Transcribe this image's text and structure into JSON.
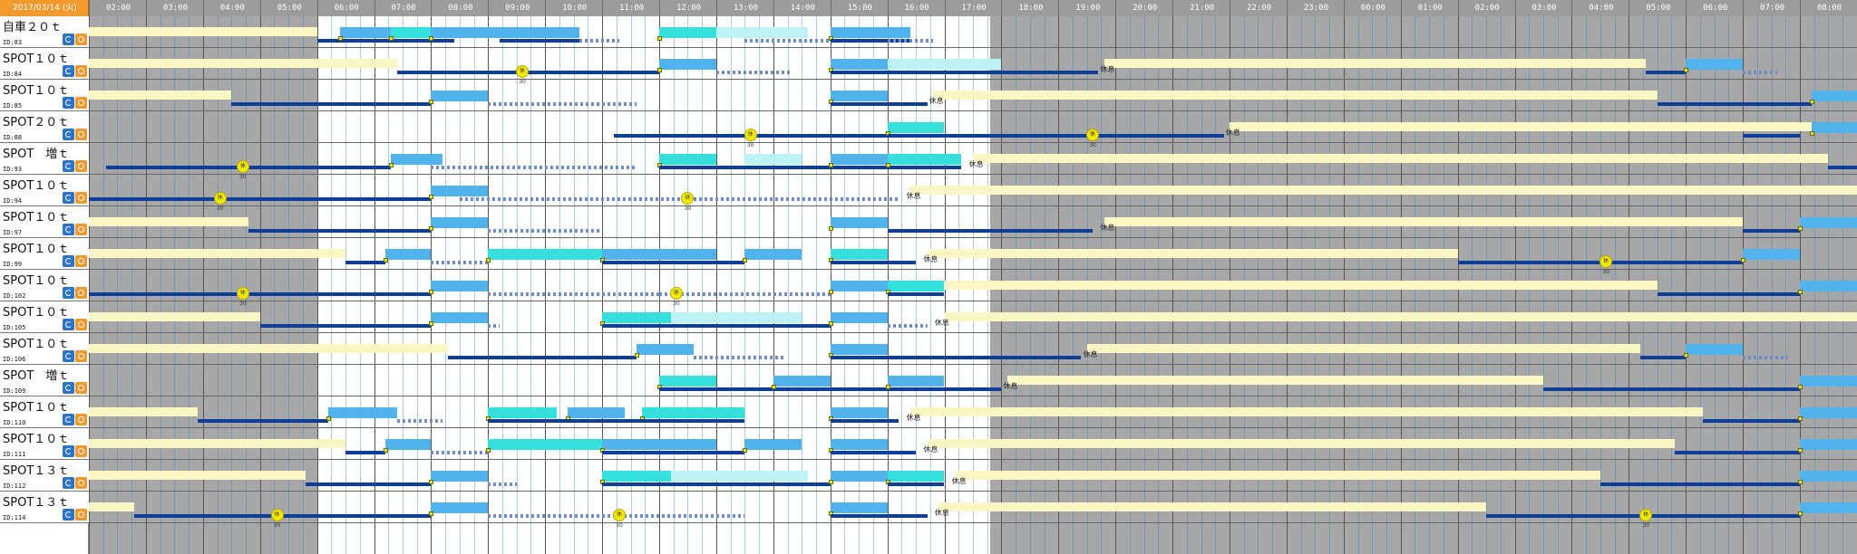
{
  "header": {
    "date": "2017/03/14 (火)",
    "hours": [
      "02:00",
      "03:00",
      "04:00",
      "05:00",
      "06:00",
      "07:00",
      "08:00",
      "09:00",
      "10:00",
      "11:00",
      "12:00",
      "13:00",
      "14:00",
      "15:00",
      "16:00",
      "17:00",
      "18:00",
      "19:00",
      "20:00",
      "21:00",
      "22:00",
      "23:00",
      "00:00",
      "01:00",
      "02:00",
      "03:00",
      "04:00",
      "05:00",
      "06:00",
      "07:00",
      "08:00"
    ]
  },
  "rest_label": "休息",
  "rest_badge": "休30",
  "rows": [
    {
      "title": "自車２０ｔ",
      "id": "ID:83",
      "tasks": [
        {
          "kind": "idle",
          "s": 0,
          "e": 4
        },
        {
          "kind": "dark",
          "s": 4,
          "e": 6.4
        },
        {
          "kind": "light",
          "s": 4.4,
          "e": 5.3,
          "label": "..."
        },
        {
          "kind": "cyan",
          "s": 5.3,
          "e": 6,
          "label": "..."
        },
        {
          "kind": "light",
          "s": 6,
          "e": 8.6,
          "label": "..."
        },
        {
          "kind": "dark",
          "s": 7.2,
          "e": 8.6
        },
        {
          "kind": "dots",
          "s": 8.6,
          "e": 9.3
        },
        {
          "kind": "cyan",
          "s": 10,
          "e": 12,
          "label": "..."
        },
        {
          "kind": "pale",
          "s": 11,
          "e": 12.6,
          "label": ""
        },
        {
          "kind": "dots",
          "s": 11.5,
          "e": 13
        },
        {
          "kind": "light",
          "s": 13,
          "e": 14.4,
          "label": "..."
        },
        {
          "kind": "dark",
          "s": 13,
          "e": 14.4
        },
        {
          "kind": "dots",
          "s": 14,
          "e": 14.8
        }
      ]
    },
    {
      "title": "SPOT１０ｔ",
      "id": "ID:84",
      "rest_at": 17.7,
      "badge_at": 7.6,
      "tasks": [
        {
          "kind": "idle",
          "s": 0,
          "e": 5.4
        },
        {
          "kind": "dark",
          "s": 5.4,
          "e": 10
        },
        {
          "kind": "light",
          "s": 10,
          "e": 11,
          "label": "..."
        },
        {
          "kind": "dots",
          "s": 11,
          "e": 12.3
        },
        {
          "kind": "light",
          "s": 13,
          "e": 14,
          "label": "..."
        },
        {
          "kind": "pale",
          "s": 14,
          "e": 16,
          "label": ""
        },
        {
          "kind": "dark",
          "s": 13,
          "e": 17.7
        },
        {
          "kind": "idle",
          "s": 17.8,
          "e": 27.3
        },
        {
          "kind": "dark",
          "s": 27.3,
          "e": 28
        },
        {
          "kind": "light",
          "s": 28,
          "e": 29,
          "label": "..."
        },
        {
          "kind": "dots",
          "s": 29,
          "e": 29.6
        }
      ]
    },
    {
      "title": "SPOT１０ｔ",
      "id": "ID:85",
      "rest_at": 14.7,
      "tasks": [
        {
          "kind": "idle",
          "s": 0,
          "e": 2.5
        },
        {
          "kind": "dark",
          "s": 2.5,
          "e": 6
        },
        {
          "kind": "light",
          "s": 6,
          "e": 7,
          "label": "..."
        },
        {
          "kind": "dots",
          "s": 7,
          "e": 9.6
        },
        {
          "kind": "light",
          "s": 13,
          "e": 14,
          "label": "..."
        },
        {
          "kind": "dark",
          "s": 13,
          "e": 14.7
        },
        {
          "kind": "idle",
          "s": 14.8,
          "e": 27.5
        },
        {
          "kind": "dark",
          "s": 27.5,
          "e": 30.2
        },
        {
          "kind": "light",
          "s": 30.2,
          "e": 31,
          "label": ""
        }
      ]
    },
    {
      "title": "SPOT２０ｔ",
      "id": "ID:88",
      "rest_at": 19.9,
      "badge_at": 11.6,
      "badge2_at": 17.6,
      "tasks": [
        {
          "kind": "dark",
          "s": 9.2,
          "e": 14
        },
        {
          "kind": "cyan",
          "s": 14,
          "e": 15,
          "label": "..."
        },
        {
          "kind": "dark",
          "s": 14,
          "e": 19.9
        },
        {
          "kind": "idle",
          "s": 20,
          "e": 30.2
        },
        {
          "kind": "dark",
          "s": 29,
          "e": 30
        },
        {
          "kind": "light",
          "s": 30.2,
          "e": 31,
          "label": ""
        }
      ]
    },
    {
      "title": "SPOT　増ｔ",
      "id": "ID:93",
      "rest_at": 15.4,
      "badge_at": 2.7,
      "tasks": [
        {
          "kind": "dark",
          "s": 0.3,
          "e": 5.3
        },
        {
          "kind": "light",
          "s": 5.3,
          "e": 6.2,
          "label": "..."
        },
        {
          "kind": "dots",
          "s": 6,
          "e": 9.6
        },
        {
          "kind": "cyan",
          "s": 10,
          "e": 11,
          "label": "..."
        },
        {
          "kind": "pale",
          "s": 11.5,
          "e": 12.5,
          "label": ""
        },
        {
          "kind": "dark",
          "s": 10,
          "e": 15.3
        },
        {
          "kind": "light",
          "s": 13,
          "e": 14,
          "label": "..."
        },
        {
          "kind": "cyan",
          "s": 14,
          "e": 15.3,
          "label": "..."
        },
        {
          "kind": "idle",
          "s": 15.5,
          "e": 30.5
        },
        {
          "kind": "dark",
          "s": 30.5,
          "e": 31
        }
      ]
    },
    {
      "title": "SPOT１０ｔ",
      "id": "ID:94",
      "rest_at": 14.3,
      "badge_at": 2.3,
      "badge2_at": 10.5,
      "tasks": [
        {
          "kind": "dark",
          "s": 0,
          "e": 6
        },
        {
          "kind": "light",
          "s": 6,
          "e": 7,
          "label": "..."
        },
        {
          "kind": "dots",
          "s": 6.5,
          "e": 14.2
        },
        {
          "kind": "idle",
          "s": 14.4,
          "e": 31
        }
      ]
    },
    {
      "title": "SPOT１０ｔ",
      "id": "ID:97",
      "rest_at": 17.7,
      "tasks": [
        {
          "kind": "idle",
          "s": 0,
          "e": 2.8
        },
        {
          "kind": "dark",
          "s": 2.8,
          "e": 6
        },
        {
          "kind": "light",
          "s": 6,
          "e": 7,
          "label": "..."
        },
        {
          "kind": "dots",
          "s": 7,
          "e": 9
        },
        {
          "kind": "light",
          "s": 13,
          "e": 14,
          "label": "..."
        },
        {
          "kind": "dark",
          "s": 14,
          "e": 17.6
        },
        {
          "kind": "idle",
          "s": 17.8,
          "e": 29
        },
        {
          "kind": "dark",
          "s": 29,
          "e": 30
        },
        {
          "kind": "light",
          "s": 30,
          "e": 31,
          "label": ""
        }
      ]
    },
    {
      "title": "SPOT１０ｔ",
      "id": "ID:99",
      "rest_at": 14.6,
      "badge_at": 26.6,
      "tasks": [
        {
          "kind": "idle",
          "s": 0,
          "e": 4.5
        },
        {
          "kind": "dark",
          "s": 4.5,
          "e": 5.2
        },
        {
          "kind": "light",
          "s": 5.2,
          "e": 6,
          "label": "..."
        },
        {
          "kind": "dots",
          "s": 6,
          "e": 7
        },
        {
          "kind": "cyan",
          "s": 7,
          "e": 9,
          "label": "..."
        },
        {
          "kind": "light",
          "s": 9,
          "e": 11,
          "label": "..."
        },
        {
          "kind": "dark",
          "s": 9,
          "e": 11.5
        },
        {
          "kind": "light",
          "s": 11.5,
          "e": 12.5,
          "label": "..."
        },
        {
          "kind": "cyan",
          "s": 13,
          "e": 14,
          "label": "..."
        },
        {
          "kind": "dark",
          "s": 13,
          "e": 14.5
        },
        {
          "kind": "idle",
          "s": 14.7,
          "e": 24
        },
        {
          "kind": "dark",
          "s": 24,
          "e": 29
        },
        {
          "kind": "light",
          "s": 29,
          "e": 30,
          "label": "..."
        }
      ]
    },
    {
      "title": "SPOT１０ｔ",
      "id": "ID:102",
      "badge_at": 2.7,
      "badge2_at": 10.3,
      "tasks": [
        {
          "kind": "dark",
          "s": 0,
          "e": 6
        },
        {
          "kind": "light",
          "s": 6,
          "e": 7,
          "label": "..."
        },
        {
          "kind": "dots",
          "s": 7,
          "e": 10
        },
        {
          "kind": "dots",
          "s": 10,
          "e": 13
        },
        {
          "kind": "light",
          "s": 13,
          "e": 14,
          "label": "..."
        },
        {
          "kind": "cyan",
          "s": 14,
          "e": 15,
          "label": "..."
        },
        {
          "kind": "dark",
          "s": 14,
          "e": 15
        },
        {
          "kind": "idle",
          "s": 15,
          "e": 27.5
        },
        {
          "kind": "dark",
          "s": 27.5,
          "e": 30
        },
        {
          "kind": "light",
          "s": 30,
          "e": 31,
          "label": ""
        }
      ]
    },
    {
      "title": "SPOT１０ｔ",
      "id": "ID:105",
      "rest_at": 14.8,
      "tasks": [
        {
          "kind": "idle",
          "s": 0,
          "e": 3
        },
        {
          "kind": "dark",
          "s": 3,
          "e": 6
        },
        {
          "kind": "light",
          "s": 6,
          "e": 7,
          "label": "..."
        },
        {
          "kind": "dots",
          "s": 7,
          "e": 7.2
        },
        {
          "kind": "cyan",
          "s": 9,
          "e": 10.2,
          "label": "..."
        },
        {
          "kind": "pale",
          "s": 10.2,
          "e": 12.5,
          "label": ""
        },
        {
          "kind": "dark",
          "s": 9,
          "e": 13
        },
        {
          "kind": "light",
          "s": 13,
          "e": 14,
          "label": "..."
        },
        {
          "kind": "dots",
          "s": 14,
          "e": 14.7
        },
        {
          "kind": "idle",
          "s": 15,
          "e": 31
        }
      ]
    },
    {
      "title": "SPOT１０ｔ",
      "id": "ID:106",
      "rest_at": 17.4,
      "tasks": [
        {
          "kind": "idle",
          "s": 0,
          "e": 6.3
        },
        {
          "kind": "dark",
          "s": 6.3,
          "e": 9.6
        },
        {
          "kind": "light",
          "s": 9.6,
          "e": 10.6,
          "label": "..."
        },
        {
          "kind": "dots",
          "s": 10.6,
          "e": 12.2
        },
        {
          "kind": "light",
          "s": 13,
          "e": 14,
          "label": "..."
        },
        {
          "kind": "dark",
          "s": 13,
          "e": 17.4
        },
        {
          "kind": "idle",
          "s": 17.5,
          "e": 27.2
        },
        {
          "kind": "dark",
          "s": 27.2,
          "e": 28
        },
        {
          "kind": "light",
          "s": 28,
          "e": 29,
          "label": "..."
        },
        {
          "kind": "dots",
          "s": 29,
          "e": 29.8
        }
      ]
    },
    {
      "title": "SPOT　増ｔ",
      "id": "ID:109",
      "rest_at": 16,
      "tasks": [
        {
          "kind": "cyan",
          "s": 10,
          "e": 11,
          "label": "..."
        },
        {
          "kind": "dark",
          "s": 10,
          "e": 16
        },
        {
          "kind": "light",
          "s": 12,
          "e": 13,
          "label": "..."
        },
        {
          "kind": "light",
          "s": 14,
          "e": 15,
          "label": "..."
        },
        {
          "kind": "idle",
          "s": 16.1,
          "e": 25.5
        },
        {
          "kind": "dark",
          "s": 25.5,
          "e": 30
        },
        {
          "kind": "light",
          "s": 30,
          "e": 31,
          "label": ""
        }
      ]
    },
    {
      "title": "SPOT１０ｔ",
      "id": "ID:110",
      "rest_at": 14.3,
      "tasks": [
        {
          "kind": "idle",
          "s": 0,
          "e": 1.9
        },
        {
          "kind": "dark",
          "s": 1.9,
          "e": 4.2
        },
        {
          "kind": "light",
          "s": 4.2,
          "e": 5.4,
          "label": "..."
        },
        {
          "kind": "dots",
          "s": 5.4,
          "e": 6.2
        },
        {
          "kind": "cyan",
          "s": 7,
          "e": 8.2,
          "label": "..."
        },
        {
          "kind": "light",
          "s": 8.4,
          "e": 9.4,
          "label": "..."
        },
        {
          "kind": "cyan",
          "s": 9.7,
          "e": 11.5,
          "label": "..."
        },
        {
          "kind": "dark",
          "s": 7,
          "e": 11.5
        },
        {
          "kind": "light",
          "s": 13,
          "e": 14,
          "label": "..."
        },
        {
          "kind": "dark",
          "s": 13,
          "e": 14.2
        },
        {
          "kind": "idle",
          "s": 14.4,
          "e": 28.3
        },
        {
          "kind": "dark",
          "s": 28.3,
          "e": 30
        },
        {
          "kind": "light",
          "s": 30,
          "e": 31,
          "label": ""
        }
      ]
    },
    {
      "title": "SPOT１０ｔ",
      "id": "ID:111",
      "rest_at": 14.6,
      "tasks": [
        {
          "kind": "idle",
          "s": 0,
          "e": 4.5
        },
        {
          "kind": "dark",
          "s": 4.5,
          "e": 5.2
        },
        {
          "kind": "light",
          "s": 5.2,
          "e": 6,
          "label": "..."
        },
        {
          "kind": "dots",
          "s": 6,
          "e": 7
        },
        {
          "kind": "cyan",
          "s": 7,
          "e": 9,
          "label": "..."
        },
        {
          "kind": "light",
          "s": 9,
          "e": 11,
          "label": "..."
        },
        {
          "kind": "dark",
          "s": 9,
          "e": 11.5
        },
        {
          "kind": "light",
          "s": 11.5,
          "e": 12.5,
          "label": "..."
        },
        {
          "kind": "light",
          "s": 13,
          "e": 14,
          "label": "..."
        },
        {
          "kind": "dark",
          "s": 13,
          "e": 14.5
        },
        {
          "kind": "idle",
          "s": 14.7,
          "e": 27.8
        },
        {
          "kind": "dark",
          "s": 27.8,
          "e": 30
        },
        {
          "kind": "light",
          "s": 30,
          "e": 31,
          "label": ""
        }
      ]
    },
    {
      "title": "SPOT１３ｔ",
      "id": "ID:112",
      "rest_at": 15.1,
      "tasks": [
        {
          "kind": "idle",
          "s": 0,
          "e": 3.8
        },
        {
          "kind": "dark",
          "s": 3.8,
          "e": 6
        },
        {
          "kind": "light",
          "s": 6,
          "e": 7,
          "label": "..."
        },
        {
          "kind": "dots",
          "s": 7,
          "e": 7.5
        },
        {
          "kind": "cyan",
          "s": 9,
          "e": 10.2,
          "label": "..."
        },
        {
          "kind": "pale",
          "s": 10.2,
          "e": 12.6,
          "label": ""
        },
        {
          "kind": "dark",
          "s": 9,
          "e": 13
        },
        {
          "kind": "light",
          "s": 13,
          "e": 14,
          "label": "..."
        },
        {
          "kind": "cyan",
          "s": 14,
          "e": 15,
          "label": "..."
        },
        {
          "kind": "dark",
          "s": 14,
          "e": 15
        },
        {
          "kind": "idle",
          "s": 15.2,
          "e": 26.5
        },
        {
          "kind": "dark",
          "s": 26.5,
          "e": 30
        },
        {
          "kind": "light",
          "s": 30,
          "e": 31,
          "label": ""
        }
      ]
    },
    {
      "title": "SPOT１３ｔ",
      "id": "ID:114",
      "rest_at": 14.8,
      "badge_at": 3.3,
      "badge2_at": 9.3,
      "badge3_at": 27.3,
      "tasks": [
        {
          "kind": "idle",
          "s": 0,
          "e": 0.8
        },
        {
          "kind": "dark",
          "s": 0.8,
          "e": 6
        },
        {
          "kind": "light",
          "s": 6,
          "e": 7,
          "label": "..."
        },
        {
          "kind": "dots",
          "s": 7,
          "e": 11.5
        },
        {
          "kind": "light",
          "s": 13,
          "e": 14,
          "label": "..."
        },
        {
          "kind": "dark",
          "s": 13,
          "e": 14.7
        },
        {
          "kind": "idle",
          "s": 14.9,
          "e": 24.5
        },
        {
          "kind": "dark",
          "s": 24.5,
          "e": 30
        },
        {
          "kind": "light",
          "s": 30,
          "e": 31,
          "label": ""
        }
      ]
    }
  ]
}
